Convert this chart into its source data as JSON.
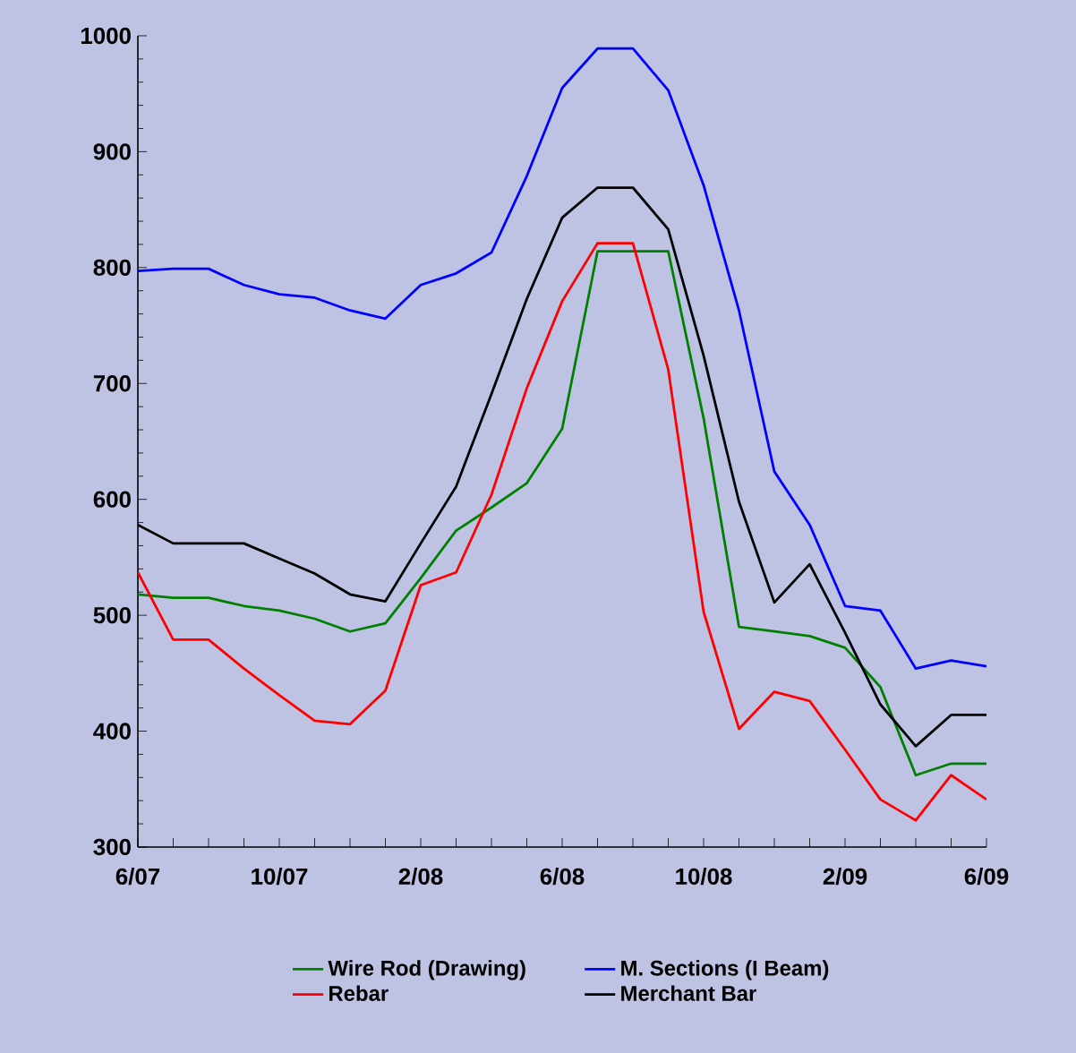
{
  "chart_data": {
    "type": "line",
    "categories": [
      "6/07",
      null,
      null,
      null,
      "10/07",
      null,
      null,
      null,
      "2/08",
      null,
      null,
      null,
      "6/08",
      null,
      null,
      null,
      "10/08",
      null,
      null,
      null,
      "2/09",
      null,
      null,
      null,
      "6/09"
    ],
    "series": [
      {
        "name": "Wire Rod (Drawing)",
        "color": "#008000",
        "values": [
          518,
          515,
          515,
          508,
          504,
          497,
          486,
          493,
          532,
          573,
          593,
          614,
          661,
          814,
          814,
          814,
          670,
          490,
          486,
          482,
          472,
          438,
          362,
          372,
          372
        ]
      },
      {
        "name": "M. Sections (I Beam)",
        "color": "#0000ff",
        "values": [
          797,
          799,
          799,
          785,
          777,
          774,
          763,
          756,
          785,
          795,
          813,
          879,
          955,
          989,
          989,
          953,
          871,
          763,
          624,
          578,
          508,
          504,
          454,
          461,
          456
        ]
      },
      {
        "name": "Rebar",
        "color": "#ff0000",
        "values": [
          537,
          479,
          479,
          454,
          431,
          409,
          406,
          435,
          526,
          537,
          604,
          696,
          771,
          821,
          821,
          712,
          503,
          402,
          434,
          426,
          384,
          341,
          323,
          362,
          341
        ]
      },
      {
        "name": "Merchant Bar",
        "color": "#000000",
        "values": [
          578,
          562,
          562,
          562,
          549,
          536,
          518,
          512,
          562,
          611,
          691,
          773,
          843,
          869,
          869,
          833,
          724,
          598,
          511,
          544,
          485,
          423,
          387,
          414,
          414
        ]
      }
    ],
    "ylim": [
      300,
      1000
    ],
    "yticks": [
      300,
      400,
      500,
      600,
      700,
      800,
      900,
      1000
    ],
    "grid": false,
    "legend": "bottom",
    "marker": "none",
    "line_style": "solid"
  }
}
